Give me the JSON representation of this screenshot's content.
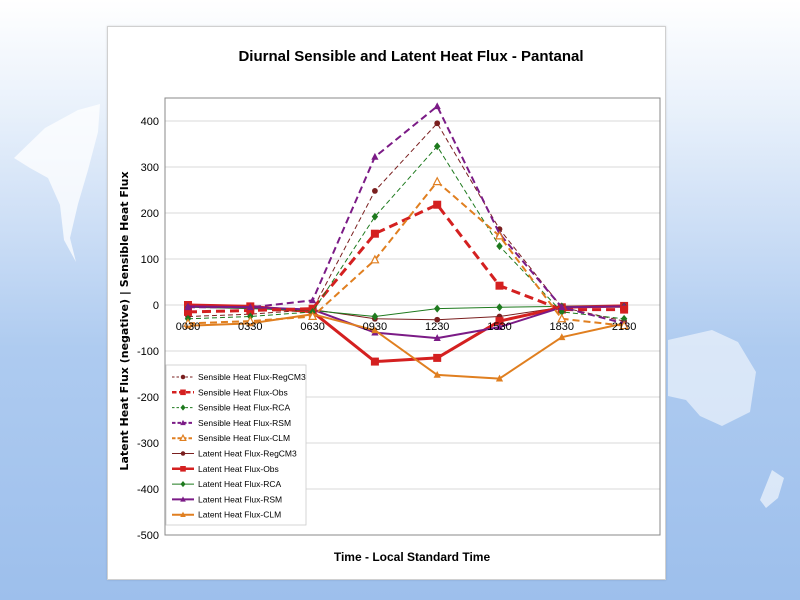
{
  "chart_data": {
    "type": "line",
    "title": "Diurnal Sensible and Latent Heat Flux - Pantanal",
    "xlabel": "Time - Local Standard Time",
    "ylabel": "Latent Heat Flux (negative) | Sensible Heat Flux",
    "categories": [
      "0030",
      "0330",
      "0630",
      "0930",
      "1230",
      "1530",
      "1830",
      "2130"
    ],
    "ylim": [
      -500,
      450
    ],
    "yticks": [
      400,
      300,
      200,
      100,
      0,
      -100,
      -200,
      -300,
      -400,
      -500
    ],
    "grid": "horizontal",
    "legend_position": "bottom-left",
    "series": [
      {
        "name": "Sensible Heat Flux-RegCM3",
        "color": "#7a1f1f",
        "dash": "dash-thin",
        "marker": "circle",
        "values": [
          -25,
          -20,
          -10,
          248,
          395,
          165,
          -5,
          -35
        ]
      },
      {
        "name": "Sensible Heat Flux-Obs",
        "color": "#d42020",
        "dash": "dash-thick",
        "marker": "square",
        "values": [
          -15,
          -12,
          -8,
          155,
          218,
          42,
          -10,
          -10
        ]
      },
      {
        "name": "Sensible Heat Flux-RCA",
        "color": "#1e7a1e",
        "dash": "dash-thin",
        "marker": "diamond",
        "values": [
          -30,
          -25,
          -15,
          192,
          345,
          128,
          -15,
          -30
        ]
      },
      {
        "name": "Sensible Heat Flux-RSM",
        "color": "#7b1b86",
        "dash": "dash-medium",
        "marker": "triangle",
        "values": [
          -5,
          -5,
          10,
          322,
          432,
          155,
          -5,
          -40
        ]
      },
      {
        "name": "Sensible Heat Flux-CLM",
        "color": "#e07f20",
        "dash": "dash-medium",
        "marker": "triangle-open",
        "values": [
          -40,
          -35,
          -25,
          98,
          268,
          150,
          -30,
          -45
        ]
      },
      {
        "name": "Latent Heat Flux-RegCM3",
        "color": "#7a1f1f",
        "dash": "solid-thin",
        "marker": "circle",
        "values": [
          -2,
          -5,
          -10,
          -30,
          -32,
          -25,
          -5,
          -5
        ]
      },
      {
        "name": "Latent Heat Flux-Obs",
        "color": "#d42020",
        "dash": "solid-thick",
        "marker": "square",
        "values": [
          0,
          -3,
          -15,
          -123,
          -115,
          -35,
          -5,
          -2
        ]
      },
      {
        "name": "Latent Heat Flux-RCA",
        "color": "#1e7a1e",
        "dash": "solid-thin",
        "marker": "diamond",
        "values": [
          -5,
          -8,
          -12,
          -25,
          -8,
          -5,
          -3,
          -3
        ]
      },
      {
        "name": "Latent Heat Flux-RSM",
        "color": "#7b1b86",
        "dash": "solid-medium",
        "marker": "triangle",
        "values": [
          -3,
          -5,
          -10,
          -60,
          -72,
          -48,
          -5,
          -3
        ]
      },
      {
        "name": "Latent Heat Flux-CLM",
        "color": "#e07f20",
        "dash": "solid-medium",
        "marker": "triangle",
        "values": [
          -45,
          -40,
          -20,
          -55,
          -152,
          -160,
          -70,
          -40
        ]
      }
    ]
  }
}
